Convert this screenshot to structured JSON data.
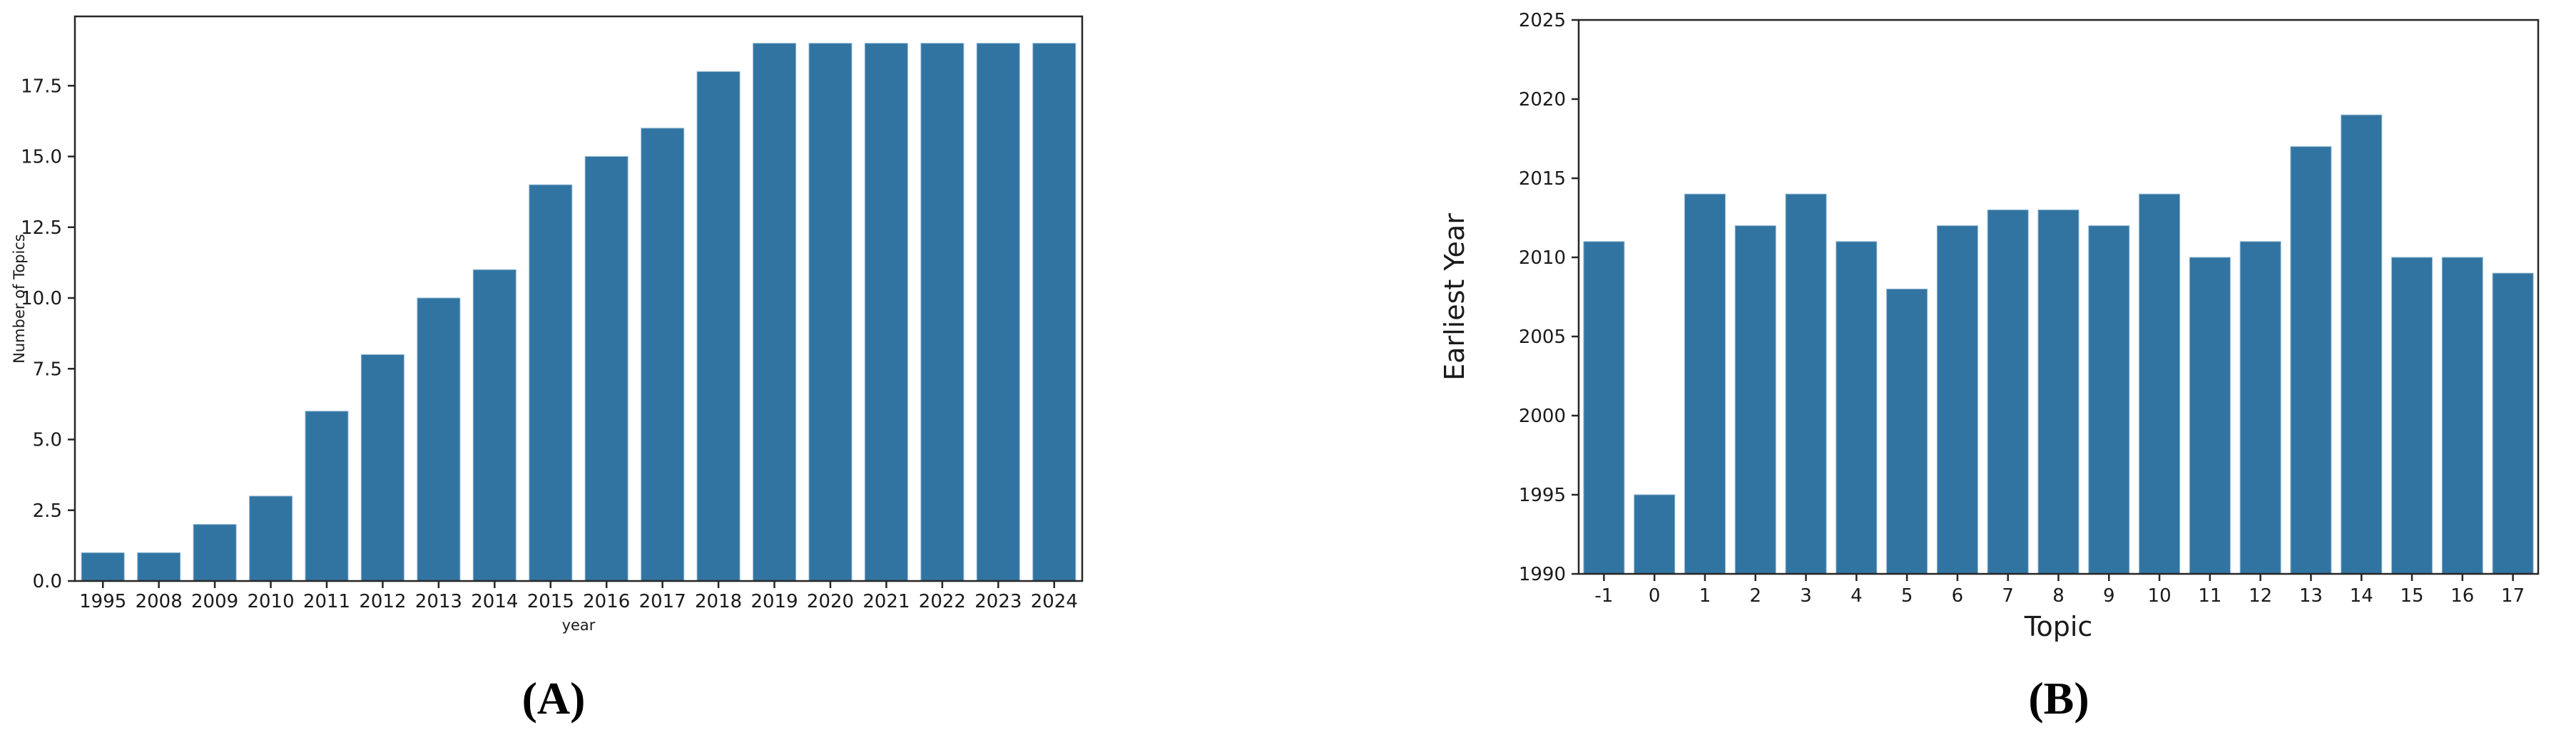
{
  "figure": {
    "bar_color": "#3274a1",
    "bar_edge_color": "#8fb7d4",
    "axis_color": "#262626",
    "text_color": "#1a1a1a",
    "background": "#ffffff",
    "captions": {
      "a": "(A)",
      "b": "(B)"
    }
  },
  "chart_data": [
    {
      "id": "A",
      "type": "bar",
      "title": "",
      "xlabel": "year",
      "ylabel": "Number of Topics",
      "categories": [
        "1995",
        "2008",
        "2009",
        "2010",
        "2011",
        "2012",
        "2013",
        "2014",
        "2015",
        "2016",
        "2017",
        "2018",
        "2019",
        "2020",
        "2021",
        "2022",
        "2023",
        "2024"
      ],
      "values": [
        1,
        1,
        2,
        3,
        6,
        8,
        10,
        11,
        14,
        15,
        16,
        18,
        19,
        19,
        19,
        19,
        19,
        19
      ],
      "ylim": [
        0,
        19.95
      ],
      "baseline": 0,
      "yticks": [
        0,
        2.5,
        5,
        7.5,
        10,
        12.5,
        15,
        17.5
      ],
      "ytick_labels": [
        "0.0",
        "2.5",
        "5.0",
        "7.5",
        "10.0",
        "12.5",
        "15.0",
        "17.5"
      ],
      "grid": false,
      "legend": null,
      "caption": "(A)"
    },
    {
      "id": "B",
      "type": "bar",
      "title": "",
      "xlabel": "Topic",
      "ylabel": "Earliest Year",
      "categories": [
        "-1",
        "0",
        "1",
        "2",
        "3",
        "4",
        "5",
        "6",
        "7",
        "8",
        "9",
        "10",
        "11",
        "12",
        "13",
        "14",
        "15",
        "16",
        "17"
      ],
      "values": [
        2011,
        1995,
        2014,
        2012,
        2014,
        2011,
        2008,
        2012,
        2013,
        2013,
        2012,
        2014,
        2010,
        2011,
        2017,
        2019,
        2010,
        2010,
        2009
      ],
      "ylim": [
        1990,
        2025
      ],
      "baseline": 1990,
      "yticks": [
        1990,
        1995,
        2000,
        2005,
        2010,
        2015,
        2020,
        2025
      ],
      "ytick_labels": [
        "1990",
        "1995",
        "2000",
        "2005",
        "2010",
        "2015",
        "2020",
        "2025"
      ],
      "grid": false,
      "legend": null,
      "caption": "(B)"
    }
  ]
}
